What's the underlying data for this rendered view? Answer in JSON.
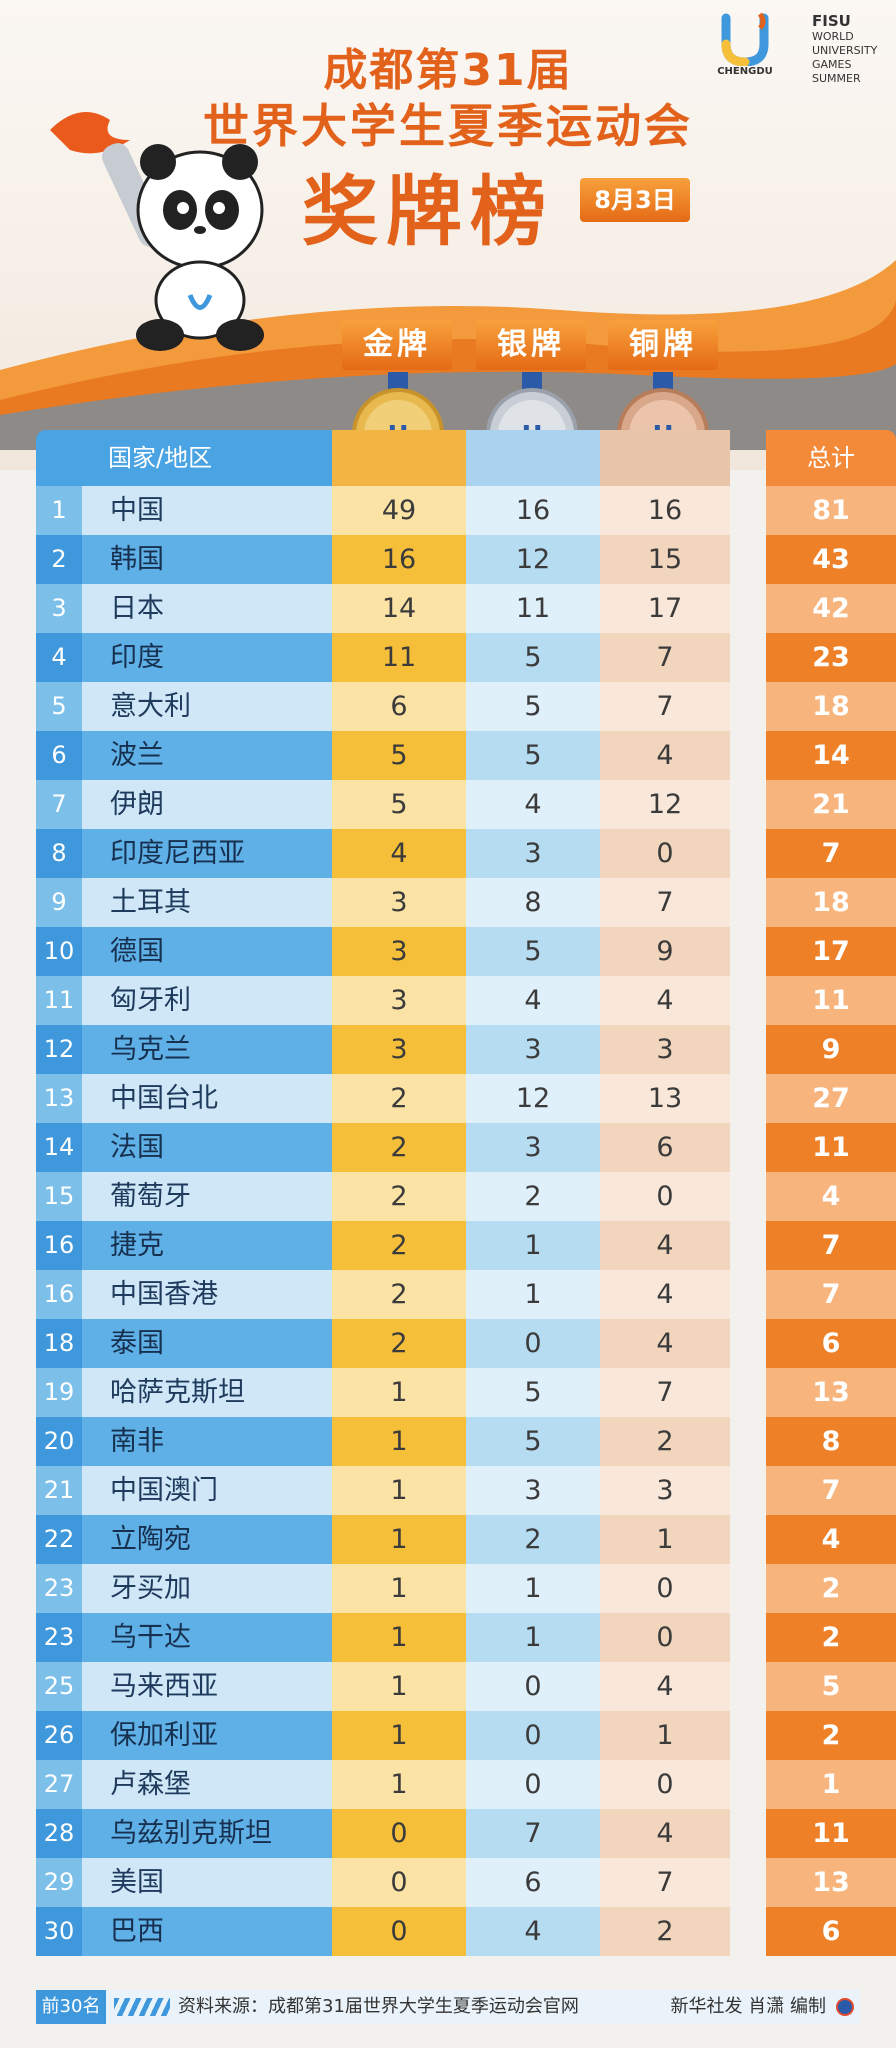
{
  "header": {
    "title_line1": "成都第31届",
    "title_line2": "世界大学生夏季运动会",
    "title_line3": "奖牌榜",
    "date": "8月3日",
    "logo_city": "CHENGDU",
    "fisu_brand": "FISU",
    "fisu_lines": [
      "WORLD",
      "UNIVERSITY",
      "GAMES",
      "SUMMER"
    ]
  },
  "medal_labels": {
    "gold": "金牌",
    "silver": "银牌",
    "bronze": "铜牌"
  },
  "table": {
    "col_country": "国家/地区",
    "col_total": "总计",
    "rows": [
      {
        "rank": "1",
        "name": "中国",
        "gold": "49",
        "silver": "16",
        "bronze": "16",
        "total": "81"
      },
      {
        "rank": "2",
        "name": "韩国",
        "gold": "16",
        "silver": "12",
        "bronze": "15",
        "total": "43"
      },
      {
        "rank": "3",
        "name": "日本",
        "gold": "14",
        "silver": "11",
        "bronze": "17",
        "total": "42"
      },
      {
        "rank": "4",
        "name": "印度",
        "gold": "11",
        "silver": "5",
        "bronze": "7",
        "total": "23"
      },
      {
        "rank": "5",
        "name": "意大利",
        "gold": "6",
        "silver": "5",
        "bronze": "7",
        "total": "18"
      },
      {
        "rank": "6",
        "name": "波兰",
        "gold": "5",
        "silver": "5",
        "bronze": "4",
        "total": "14"
      },
      {
        "rank": "7",
        "name": "伊朗",
        "gold": "5",
        "silver": "4",
        "bronze": "12",
        "total": "21"
      },
      {
        "rank": "8",
        "name": "印度尼西亚",
        "gold": "4",
        "silver": "3",
        "bronze": "0",
        "total": "7"
      },
      {
        "rank": "9",
        "name": "土耳其",
        "gold": "3",
        "silver": "8",
        "bronze": "7",
        "total": "18"
      },
      {
        "rank": "10",
        "name": "德国",
        "gold": "3",
        "silver": "5",
        "bronze": "9",
        "total": "17"
      },
      {
        "rank": "11",
        "name": "匈牙利",
        "gold": "3",
        "silver": "4",
        "bronze": "4",
        "total": "11"
      },
      {
        "rank": "12",
        "name": "乌克兰",
        "gold": "3",
        "silver": "3",
        "bronze": "3",
        "total": "9"
      },
      {
        "rank": "13",
        "name": "中国台北",
        "gold": "2",
        "silver": "12",
        "bronze": "13",
        "total": "27"
      },
      {
        "rank": "14",
        "name": "法国",
        "gold": "2",
        "silver": "3",
        "bronze": "6",
        "total": "11"
      },
      {
        "rank": "15",
        "name": "葡萄牙",
        "gold": "2",
        "silver": "2",
        "bronze": "0",
        "total": "4"
      },
      {
        "rank": "16",
        "name": "捷克",
        "gold": "2",
        "silver": "1",
        "bronze": "4",
        "total": "7"
      },
      {
        "rank": "16",
        "name": "中国香港",
        "gold": "2",
        "silver": "1",
        "bronze": "4",
        "total": "7"
      },
      {
        "rank": "18",
        "name": "泰国",
        "gold": "2",
        "silver": "0",
        "bronze": "4",
        "total": "6"
      },
      {
        "rank": "19",
        "name": "哈萨克斯坦",
        "gold": "1",
        "silver": "5",
        "bronze": "7",
        "total": "13"
      },
      {
        "rank": "20",
        "name": "南非",
        "gold": "1",
        "silver": "5",
        "bronze": "2",
        "total": "8"
      },
      {
        "rank": "21",
        "name": "中国澳门",
        "gold": "1",
        "silver": "3",
        "bronze": "3",
        "total": "7"
      },
      {
        "rank": "22",
        "name": "立陶宛",
        "gold": "1",
        "silver": "2",
        "bronze": "1",
        "total": "4"
      },
      {
        "rank": "23",
        "name": "牙买加",
        "gold": "1",
        "silver": "1",
        "bronze": "0",
        "total": "2"
      },
      {
        "rank": "23",
        "name": "乌干达",
        "gold": "1",
        "silver": "1",
        "bronze": "0",
        "total": "2"
      },
      {
        "rank": "25",
        "name": "马来西亚",
        "gold": "1",
        "silver": "0",
        "bronze": "4",
        "total": "5"
      },
      {
        "rank": "26",
        "name": "保加利亚",
        "gold": "1",
        "silver": "0",
        "bronze": "1",
        "total": "2"
      },
      {
        "rank": "27",
        "name": "卢森堡",
        "gold": "1",
        "silver": "0",
        "bronze": "0",
        "total": "1"
      },
      {
        "rank": "28",
        "name": "乌兹别克斯坦",
        "gold": "0",
        "silver": "7",
        "bronze": "4",
        "total": "11"
      },
      {
        "rank": "29",
        "name": "美国",
        "gold": "0",
        "silver": "6",
        "bronze": "7",
        "total": "13"
      },
      {
        "rank": "30",
        "name": "巴西",
        "gold": "0",
        "silver": "4",
        "bronze": "2",
        "total": "6"
      }
    ]
  },
  "footer": {
    "top_label": "前30名",
    "source": "资料来源：成都第31届世界大学生夏季运动会官网",
    "credit": "新华社发 肖潇 编制"
  },
  "colors": {
    "title_orange": "#e2621c",
    "blue": "#3f98dc",
    "gold": "#f5bf3a",
    "silver": "#b6dcf2",
    "bronze": "#f1d5bd",
    "total": "#ee8128"
  }
}
